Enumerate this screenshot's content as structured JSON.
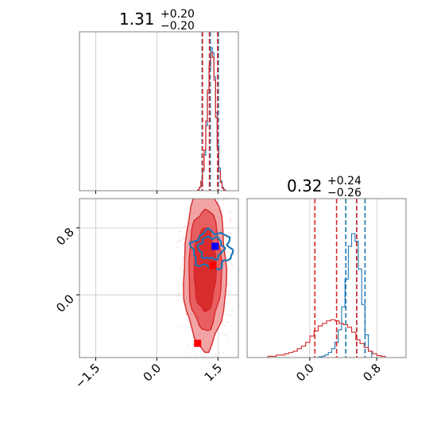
{
  "chart_data": {
    "type": "corner",
    "colors": {
      "blue": "#1f77b4",
      "red": "#d62728",
      "marker_blue": "#0000ff",
      "marker_red": "#ff0000",
      "frame": "#808080",
      "grid": "#c8c8c8"
    },
    "params": [
      {
        "title_main": "1.31",
        "title_sup": "+0.20",
        "title_sub": "−0.20",
        "range": [
          -1.9,
          2.0
        ],
        "ticks": [
          -1.5,
          0.0,
          1.5
        ],
        "tick_labels": [
          "−1.5",
          "0.0",
          "1.5"
        ]
      },
      {
        "title_main": "0.32",
        "title_sup": "+0.24",
        "title_sub": "−0.26",
        "range": [
          -0.75,
          1.15
        ],
        "ticks": [
          0.0,
          0.8
        ],
        "tick_labels": [
          "0.0",
          "0.8"
        ]
      }
    ],
    "hist_p1": {
      "bins": [
        1.0,
        1.04,
        1.08,
        1.12,
        1.16,
        1.2,
        1.24,
        1.28,
        1.32,
        1.36,
        1.4,
        1.44,
        1.48,
        1.52,
        1.56,
        1.6,
        1.64,
        1.68,
        1.72
      ],
      "series": [
        {
          "name": "blue",
          "counts": [
            0.5,
            2,
            5,
            12,
            22,
            40,
            60,
            75,
            88,
            85,
            70,
            48,
            28,
            14,
            6,
            2,
            0.5,
            0
          ]
        },
        {
          "name": "red",
          "counts": [
            0.5,
            2,
            6,
            13,
            25,
            43,
            62,
            77,
            85,
            82,
            68,
            45,
            26,
            12,
            5,
            1.5,
            0.5,
            0
          ]
        }
      ],
      "quantiles": {
        "blue": [
          1.11,
          1.31,
          1.51
        ],
        "red": [
          1.12,
          1.29,
          1.49
        ]
      }
    },
    "hist_p2": {
      "series": [
        {
          "name": "blue",
          "edges": [
            0.1,
            0.14,
            0.18,
            0.22,
            0.26,
            0.3,
            0.34,
            0.38,
            0.42,
            0.46,
            0.5,
            0.54,
            0.58,
            0.62,
            0.66,
            0.7,
            0.74
          ],
          "counts": [
            0.5,
            1,
            2,
            4,
            7,
            12,
            22,
            40,
            62,
            88,
            98,
            92,
            70,
            42,
            18,
            5,
            0
          ]
        },
        {
          "name": "red",
          "edges": [
            -0.5,
            -0.45,
            -0.4,
            -0.35,
            -0.3,
            -0.25,
            -0.2,
            -0.15,
            -0.1,
            -0.05,
            0.0,
            0.05,
            0.1,
            0.15,
            0.2,
            0.25,
            0.3,
            0.35,
            0.4,
            0.45,
            0.5,
            0.55,
            0.6,
            0.65,
            0.7,
            0.75,
            0.8,
            0.85,
            0.9
          ],
          "counts": [
            1,
            1,
            2,
            2,
            3,
            4,
            5,
            7,
            9,
            12,
            17,
            21,
            25,
            27,
            29,
            30,
            29,
            27,
            26,
            24,
            20,
            14,
            11,
            8,
            5,
            3,
            1.5,
            1,
            0
          ]
        }
      ],
      "quantiles": {
        "blue": [
          0.43,
          0.56,
          0.66
        ],
        "red": [
          0.06,
          0.32,
          0.56
        ]
      }
    },
    "joint": {
      "red_contours": [
        {
          "cx": 1.18,
          "cy": 0.3,
          "rx": 0.52,
          "ry": 0.95,
          "level": 3,
          "fill": 0.45
        },
        {
          "cx": 1.18,
          "cy": 0.3,
          "rx": 0.4,
          "ry": 0.72,
          "level": 2,
          "fill": 0.55
        },
        {
          "cx": 1.18,
          "cy": 0.3,
          "rx": 0.27,
          "ry": 0.5,
          "level": 1,
          "fill": 0.85
        }
      ],
      "blue_contours": [
        {
          "cx": 1.35,
          "cy": 0.54,
          "rx": 0.48,
          "ry": 0.22
        },
        {
          "cx": 1.33,
          "cy": 0.56,
          "rx": 0.3,
          "ry": 0.13
        }
      ],
      "markers": [
        {
          "name": "blue",
          "x": 1.43,
          "y": 0.58
        },
        {
          "name": "red",
          "x": 1.37,
          "y": 0.35
        },
        {
          "name": "red",
          "x": 1.0,
          "y": -0.58
        }
      ]
    }
  }
}
